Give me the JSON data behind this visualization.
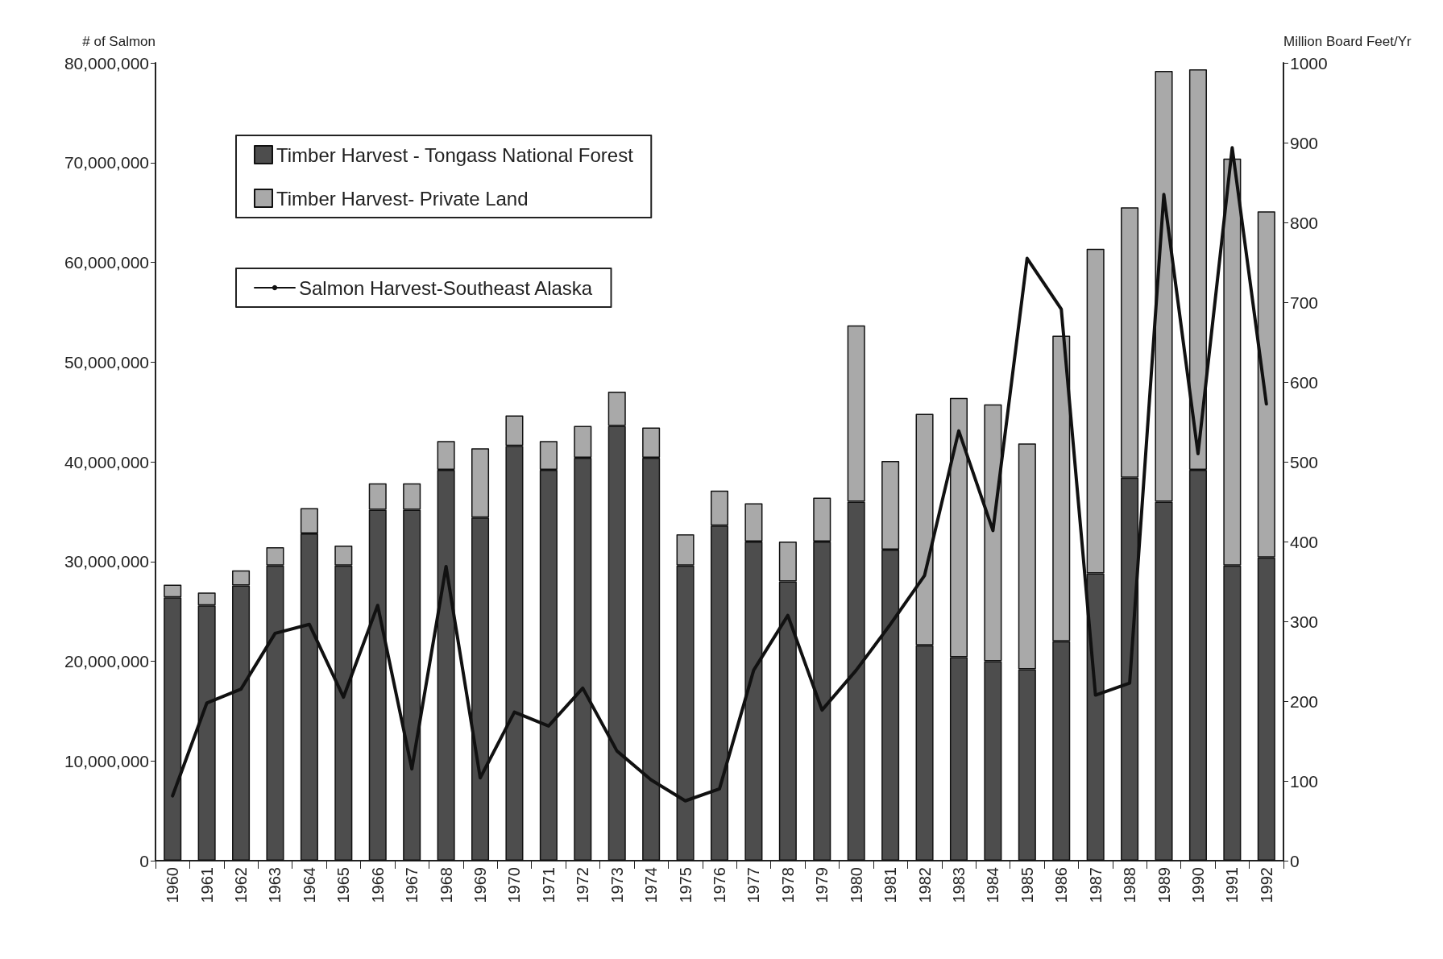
{
  "chart_data": {
    "type": "bar",
    "ylabel": "# of Salmon",
    "y2label": "Million Board Feet/Yr",
    "categories": [
      "1960",
      "1961",
      "1962",
      "1963",
      "1964",
      "1965",
      "1966",
      "1967",
      "1968",
      "1969",
      "1970",
      "1971",
      "1972",
      "1973",
      "1974",
      "1975",
      "1976",
      "1977",
      "1978",
      "1979",
      "1980",
      "1981",
      "1982",
      "1983",
      "1984",
      "1985",
      "1986",
      "1987",
      "1988",
      "1989",
      "1990",
      "1991",
      "1992"
    ],
    "stacked": true,
    "legend": "top left",
    "grid": false,
    "marker": "none",
    "line_style": "solid",
    "series": [
      {
        "name": "Timber Harvest - Tongass National Forest",
        "axis": "y2",
        "color": "#4d4d4d",
        "values": [
          330,
          320,
          345,
          370,
          410,
          370,
          440,
          440,
          490,
          430,
          520,
          490,
          505,
          545,
          505,
          370,
          420,
          400,
          350,
          400,
          450,
          390,
          270,
          255,
          250,
          240,
          275,
          360,
          480,
          450,
          490,
          370,
          380
        ]
      },
      {
        "name": "Timber Harvest- Private Land",
        "axis": "y2",
        "color": "#a9a9a9",
        "values": [
          16,
          16,
          19,
          23,
          32,
          25,
          33,
          33,
          36,
          87,
          38,
          36,
          40,
          43,
          38,
          39,
          44,
          48,
          50,
          55,
          221,
          111,
          290,
          325,
          322,
          283,
          383,
          407,
          339,
          540,
          502,
          510,
          434
        ]
      },
      {
        "name": "Salmon Harvest-Southeast Alaska",
        "type": "line",
        "color": "#111111",
        "values": [
          6500000,
          15800000,
          17200000,
          22800000,
          23700000,
          16400000,
          25600000,
          9200000,
          29500000,
          8300000,
          14900000,
          13500000,
          17300000,
          11000000,
          8100000,
          6000000,
          7200000,
          19100000,
          24600000,
          15100000,
          19100000,
          23700000,
          28600000,
          43100000,
          33100000,
          60400000,
          55300000,
          16600000,
          17800000,
          66800000,
          40800000,
          71500000,
          45800000
        ]
      }
    ],
    "ylim": [
      0,
      80000000
    ],
    "yticks": [
      {
        "value": 0,
        "label": "0"
      },
      {
        "value": 10000000,
        "label": "10,000,000"
      },
      {
        "value": 20000000,
        "label": "20,000,000"
      },
      {
        "value": 30000000,
        "label": "30,000,000"
      },
      {
        "value": 40000000,
        "label": "40,000,000"
      },
      {
        "value": 50000000,
        "label": "50,000,000"
      },
      {
        "value": 60000000,
        "label": "60,000,000"
      },
      {
        "value": 70000000,
        "label": "70,000,000"
      },
      {
        "value": 80000000,
        "label": "80,000,000"
      }
    ],
    "y2lim": [
      0,
      1000
    ],
    "y2ticks": [
      0,
      100,
      200,
      300,
      400,
      500,
      600,
      700,
      800,
      900,
      1000
    ]
  }
}
